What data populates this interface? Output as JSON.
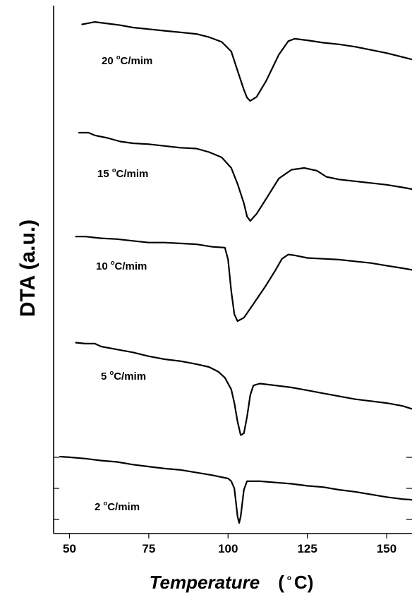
{
  "chart_data": {
    "type": "line",
    "xlabel": "Temperature",
    "xlabel_unit_prefix": "(",
    "xlabel_unit_sup": "o",
    "xlabel_unit_suffix": "C)",
    "ylabel": "DTA (a.u.)",
    "xlim": [
      45,
      158
    ],
    "xticks": [
      "50",
      "75",
      "100",
      "125",
      "150"
    ],
    "y_scale": "arbitrary units, curves vertically offset",
    "series": [
      {
        "label_value": "20",
        "label_unit": "C/mim",
        "points": [
          [
            54,
            0.96
          ],
          [
            58,
            0.99
          ],
          [
            62,
            0.97
          ],
          [
            66,
            0.95
          ],
          [
            70,
            0.92
          ],
          [
            75,
            0.9
          ],
          [
            80,
            0.88
          ],
          [
            85,
            0.86
          ],
          [
            90,
            0.84
          ],
          [
            94,
            0.8
          ],
          [
            98,
            0.74
          ],
          [
            101,
            0.62
          ],
          [
            103,
            0.38
          ],
          [
            105,
            0.14
          ],
          [
            106,
            0.04
          ],
          [
            107,
            0.0
          ],
          [
            109,
            0.05
          ],
          [
            112,
            0.25
          ],
          [
            116,
            0.58
          ],
          [
            119,
            0.75
          ],
          [
            121,
            0.78
          ],
          [
            125,
            0.76
          ],
          [
            130,
            0.73
          ],
          [
            135,
            0.71
          ],
          [
            140,
            0.68
          ],
          [
            145,
            0.64
          ],
          [
            150,
            0.6
          ],
          [
            155,
            0.55
          ],
          [
            158,
            0.52
          ]
        ]
      },
      {
        "label_value": "15",
        "label_unit": "C/mim",
        "points": [
          [
            53,
            1.0
          ],
          [
            56,
            1.0
          ],
          [
            58,
            0.97
          ],
          [
            62,
            0.94
          ],
          [
            66,
            0.9
          ],
          [
            70,
            0.88
          ],
          [
            75,
            0.87
          ],
          [
            80,
            0.85
          ],
          [
            85,
            0.83
          ],
          [
            90,
            0.82
          ],
          [
            94,
            0.78
          ],
          [
            98,
            0.72
          ],
          [
            101,
            0.6
          ],
          [
            103,
            0.42
          ],
          [
            105,
            0.2
          ],
          [
            106,
            0.05
          ],
          [
            107,
            0.0
          ],
          [
            109,
            0.08
          ],
          [
            112,
            0.25
          ],
          [
            116,
            0.48
          ],
          [
            120,
            0.58
          ],
          [
            124,
            0.6
          ],
          [
            128,
            0.57
          ],
          [
            131,
            0.5
          ],
          [
            135,
            0.47
          ],
          [
            140,
            0.45
          ],
          [
            145,
            0.43
          ],
          [
            150,
            0.41
          ],
          [
            155,
            0.38
          ],
          [
            158,
            0.36
          ]
        ]
      },
      {
        "label_value": "10",
        "label_unit": "C/mim",
        "points": [
          [
            52,
            0.99
          ],
          [
            55,
            0.99
          ],
          [
            60,
            0.97
          ],
          [
            65,
            0.96
          ],
          [
            70,
            0.94
          ],
          [
            75,
            0.92
          ],
          [
            80,
            0.92
          ],
          [
            85,
            0.91
          ],
          [
            90,
            0.9
          ],
          [
            95,
            0.87
          ],
          [
            99,
            0.86
          ],
          [
            100,
            0.72
          ],
          [
            101,
            0.35
          ],
          [
            102,
            0.08
          ],
          [
            103,
            0.0
          ],
          [
            105,
            0.04
          ],
          [
            108,
            0.2
          ],
          [
            112,
            0.42
          ],
          [
            115,
            0.6
          ],
          [
            117,
            0.73
          ],
          [
            119,
            0.78
          ],
          [
            121,
            0.77
          ],
          [
            125,
            0.74
          ],
          [
            130,
            0.73
          ],
          [
            135,
            0.72
          ],
          [
            140,
            0.7
          ],
          [
            145,
            0.68
          ],
          [
            150,
            0.65
          ],
          [
            155,
            0.62
          ],
          [
            158,
            0.6
          ]
        ]
      },
      {
        "label_value": "5",
        "label_unit": "C/mim",
        "points": [
          [
            52,
            0.96
          ],
          [
            55,
            0.95
          ],
          [
            58,
            0.95
          ],
          [
            60,
            0.92
          ],
          [
            65,
            0.89
          ],
          [
            70,
            0.86
          ],
          [
            75,
            0.82
          ],
          [
            80,
            0.79
          ],
          [
            85,
            0.77
          ],
          [
            90,
            0.74
          ],
          [
            94,
            0.71
          ],
          [
            97,
            0.66
          ],
          [
            99,
            0.6
          ],
          [
            101,
            0.48
          ],
          [
            102,
            0.34
          ],
          [
            103,
            0.15
          ],
          [
            104,
            0.01
          ],
          [
            105,
            0.03
          ],
          [
            106,
            0.2
          ],
          [
            107,
            0.42
          ],
          [
            108,
            0.52
          ],
          [
            110,
            0.54
          ],
          [
            115,
            0.52
          ],
          [
            120,
            0.5
          ],
          [
            125,
            0.47
          ],
          [
            130,
            0.44
          ],
          [
            135,
            0.41
          ],
          [
            140,
            0.38
          ],
          [
            145,
            0.36
          ],
          [
            150,
            0.34
          ],
          [
            155,
            0.31
          ],
          [
            158,
            0.28
          ]
        ]
      },
      {
        "label_value": "2",
        "label_unit": "C/mim",
        "points": [
          [
            47,
            1.0
          ],
          [
            50,
            0.99
          ],
          [
            55,
            0.97
          ],
          [
            60,
            0.94
          ],
          [
            65,
            0.92
          ],
          [
            70,
            0.88
          ],
          [
            75,
            0.85
          ],
          [
            80,
            0.82
          ],
          [
            85,
            0.8
          ],
          [
            90,
            0.76
          ],
          [
            95,
            0.72
          ],
          [
            100,
            0.67
          ],
          [
            101,
            0.63
          ],
          [
            102,
            0.52
          ],
          [
            103,
            0.1
          ],
          [
            103.5,
            0.0
          ],
          [
            104,
            0.1
          ],
          [
            105,
            0.5
          ],
          [
            106,
            0.63
          ],
          [
            110,
            0.63
          ],
          [
            115,
            0.61
          ],
          [
            120,
            0.59
          ],
          [
            125,
            0.56
          ],
          [
            130,
            0.54
          ],
          [
            135,
            0.5
          ],
          [
            140,
            0.47
          ],
          [
            145,
            0.43
          ],
          [
            150,
            0.39
          ],
          [
            155,
            0.36
          ],
          [
            158,
            0.35
          ]
        ]
      }
    ]
  }
}
